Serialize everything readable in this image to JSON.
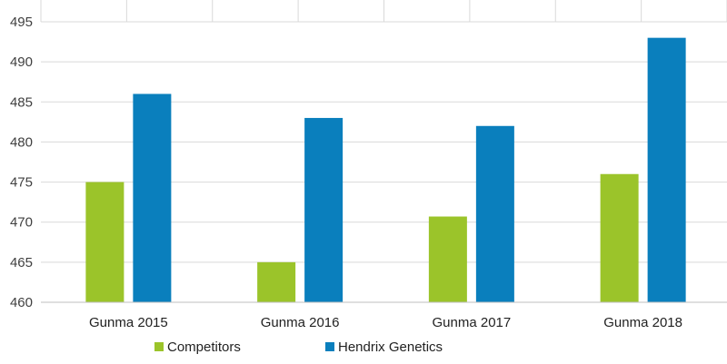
{
  "chart_data": {
    "type": "bar",
    "title": "",
    "xlabel": "",
    "ylabel": "",
    "categories": [
      "Gunma 2015",
      "Gunma 2016",
      "Gunma 2017",
      "Gunma 2018"
    ],
    "series": [
      {
        "name": "Competitors",
        "color": "#9bc42a",
        "values": [
          475,
          465,
          470.7,
          476
        ]
      },
      {
        "name": "Hendrix Genetics",
        "color": "#0a7fbd",
        "values": [
          486,
          483,
          482,
          493
        ]
      }
    ],
    "ylim": [
      460,
      495
    ],
    "yticks": [
      460,
      465,
      470,
      475,
      480,
      485,
      490,
      495
    ],
    "grid": true,
    "legend_position": "bottom"
  }
}
